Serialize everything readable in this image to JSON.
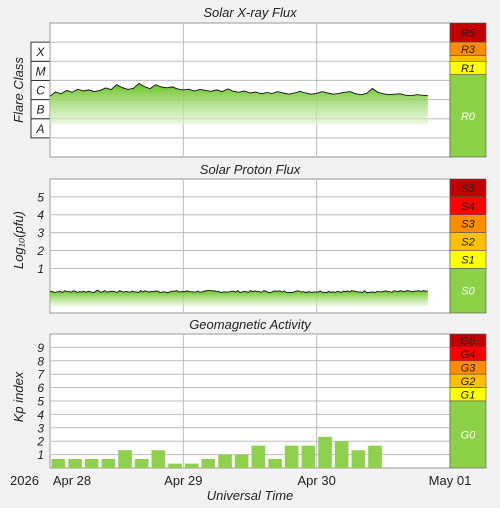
{
  "colors": {
    "background": "#f2f2f2",
    "plot_bg": "#ffffff",
    "grid": "#bdbdbd",
    "flux_green": "#8fd14f",
    "flux_line": "#111111",
    "bar_green": "#8fd14f",
    "level_5": "#c00000",
    "level_4": "#ff0000",
    "level_3": "#ff8c00",
    "level_2": "#ffc000",
    "level_1": "#ffff00",
    "level_0": "#8cd147"
  },
  "xaxis": {
    "label": "Universal Time",
    "year": "2026",
    "ticks": [
      "Apr 28",
      "Apr 29",
      "Apr 30",
      "May 01"
    ]
  },
  "chart_data": [
    {
      "type": "area",
      "title": "Solar X-ray Flux",
      "ylabel": "Flare Class",
      "y_scale": "log",
      "y_units": "W/m²",
      "ylim": [
        1e-09,
        0.01
      ],
      "class_labels": [
        "A",
        "B",
        "C",
        "M",
        "X"
      ],
      "scale_labels": [
        "R5",
        "R3",
        "R1",
        "R0"
      ],
      "x_start": "2026-04-28 00:00",
      "x_end": "2026-04-30 20:00",
      "time_step_hours": 1,
      "values": [
        1.5e-06,
        2.5e-06,
        2e-06,
        3e-06,
        2.4e-06,
        3.5e-06,
        2.8e-06,
        3.2e-06,
        2.6e-06,
        3e-06,
        4e-06,
        3.3e-06,
        6e-06,
        4.2e-06,
        3.4e-06,
        3.8e-06,
        7e-06,
        4.8e-06,
        3.7e-06,
        6e-06,
        4.6e-06,
        4.1e-06,
        4.6e-06,
        3.6e-06,
        3.2e-06,
        3.5e-06,
        2.8e-06,
        3.4e-06,
        3e-06,
        2.7e-06,
        3.2e-06,
        2.6e-06,
        3.6e-06,
        2.7e-06,
        2.4e-06,
        2.8e-06,
        2.2e-06,
        2.5e-06,
        2e-06,
        2.3e-06,
        2.1e-06,
        2.6e-06,
        2.2e-06,
        1.9e-06,
        2.2e-06,
        2.7e-06,
        2.2e-06,
        1.9e-06,
        2.1e-06,
        2.6e-06,
        2.2e-06,
        1.9e-06,
        2.1e-06,
        2.4e-06,
        2.6e-06,
        2e-06,
        1.8e-06,
        2.1e-06,
        3.8e-06,
        2.4e-06,
        2e-06,
        1.8e-06,
        1.9e-06,
        2e-06,
        1.7e-06,
        1.6e-06,
        1.8e-06,
        1.7e-06,
        1.6e-06
      ]
    },
    {
      "type": "area",
      "title": "Solar Proton Flux",
      "ylabel": "Log₁₀(pfu)",
      "y_scale": "log",
      "y_units": "pfu",
      "ylim": [
        -1.5,
        6
      ],
      "y_ticks": [
        1,
        2,
        3,
        4,
        5
      ],
      "scale_labels": [
        "S5",
        "S4",
        "S3",
        "S2",
        "S1",
        "S0"
      ],
      "x_start": "2026-04-28 00:00",
      "x_end": "2026-04-30 20:00",
      "baseline_log10": -0.3
    },
    {
      "type": "bar",
      "title": "Geomagnetic Activity",
      "ylabel": "Kp index",
      "ylim": [
        0,
        10
      ],
      "y_ticks": [
        1,
        2,
        3,
        4,
        5,
        6,
        7,
        8,
        9
      ],
      "scale_labels": [
        "G5",
        "G4",
        "G3",
        "G2",
        "G1",
        "G0"
      ],
      "bar_interval_hours": 3,
      "x_start": "2026-04-28 00:00",
      "values": [
        0.67,
        0.67,
        0.67,
        0.67,
        1.33,
        0.67,
        1.33,
        0.33,
        0.33,
        0.67,
        1.0,
        1.0,
        1.67,
        0.67,
        1.67,
        1.67,
        2.33,
        2.0,
        1.33,
        1.67
      ]
    }
  ]
}
